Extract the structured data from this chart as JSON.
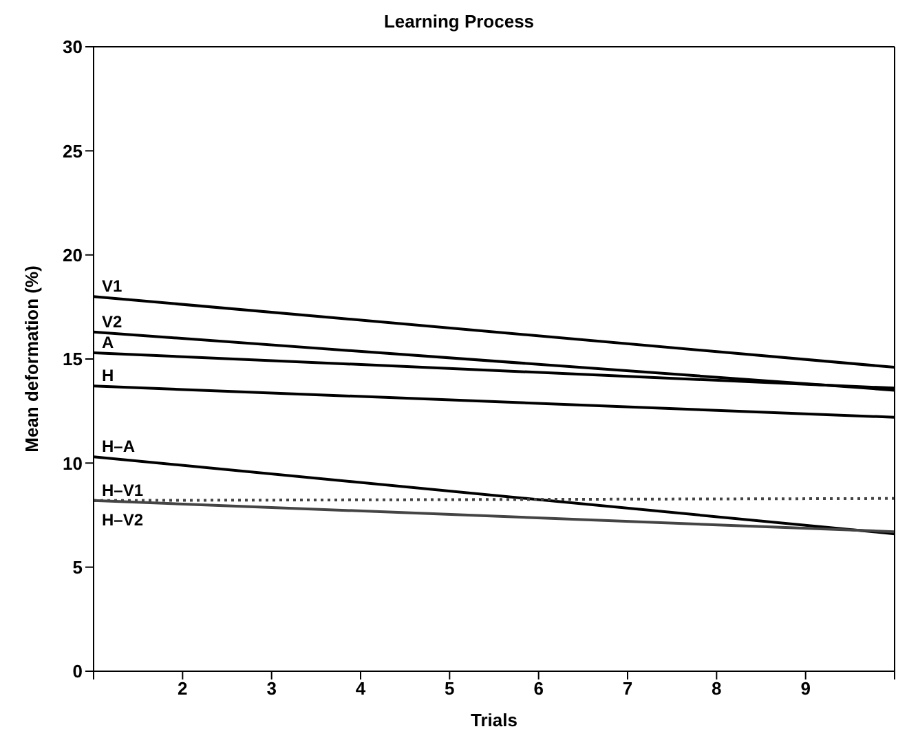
{
  "chart_data": {
    "type": "line",
    "title": "Learning Process",
    "xlabel": "Trials",
    "ylabel": "Mean deformation (%)",
    "x": [
      1,
      10
    ],
    "series": [
      {
        "name": "V1",
        "color": "#000000",
        "values": [
          18.0,
          14.6
        ]
      },
      {
        "name": "V2",
        "color": "#000000",
        "values": [
          16.3,
          13.5
        ]
      },
      {
        "name": "A",
        "color": "#000000",
        "values": [
          15.3,
          13.6
        ]
      },
      {
        "name": "H",
        "color": "#000000",
        "values": [
          13.7,
          12.2
        ]
      },
      {
        "name": "H–A",
        "color": "#000000",
        "values": [
          10.3,
          6.6
        ]
      },
      {
        "name": "H–V1",
        "color": "#444444",
        "values": [
          8.2,
          8.3
        ],
        "line_style": "dotted"
      },
      {
        "name": "H–V2",
        "color": "#444444",
        "values": [
          8.2,
          6.7
        ]
      }
    ],
    "xlim": [
      1,
      10
    ],
    "xticks": [
      {
        "value": 1,
        "label": null
      },
      2,
      3,
      4,
      5,
      6,
      7,
      8,
      9,
      {
        "value": 10,
        "label": null
      }
    ],
    "ylim": [
      0,
      30
    ],
    "yticks": [
      0,
      5,
      10,
      15,
      20,
      25,
      30
    ],
    "grid": false,
    "legend": false,
    "marker": "none",
    "line_style": "solid"
  }
}
